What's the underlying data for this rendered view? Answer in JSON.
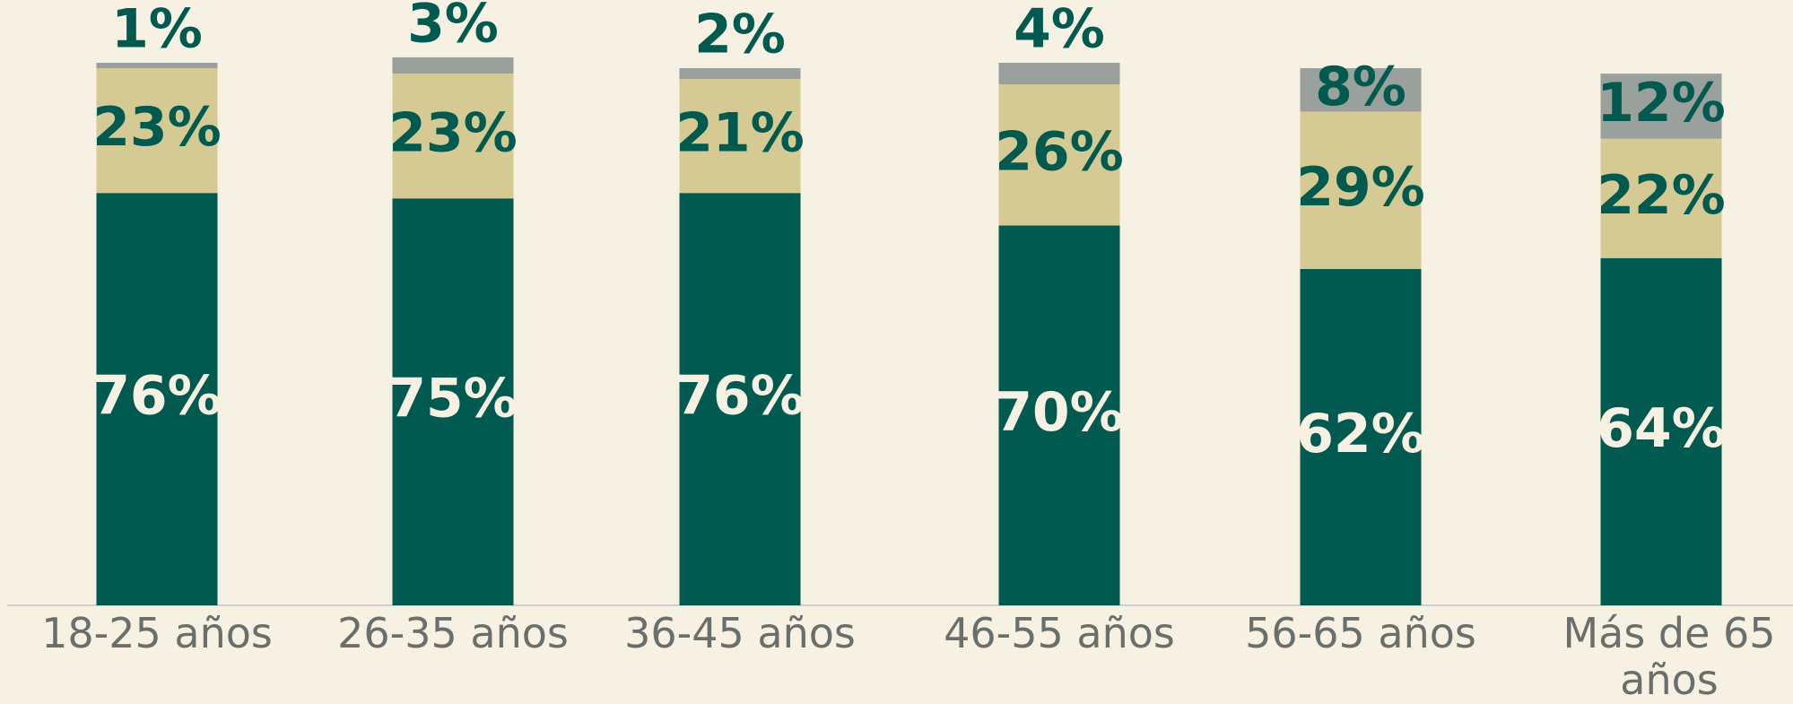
{
  "chart_data": {
    "type": "stacked_bar",
    "categories": [
      "18-25 años",
      "26-35 años",
      "36-45 años",
      "46-55 años",
      "56-65 años",
      "Más de 65 años"
    ],
    "series": [
      {
        "color": "#005a4f",
        "values": [
          76,
          75,
          76,
          70,
          62,
          64
        ],
        "value_labels": [
          "76%",
          "75%",
          "76%",
          "70%",
          "62%",
          "64%"
        ]
      },
      {
        "color": "#d6ca94",
        "values": [
          23,
          23,
          21,
          26,
          29,
          22
        ],
        "value_labels": [
          "23%",
          "23%",
          "21%",
          "26%",
          "29%",
          "22%"
        ]
      },
      {
        "color": "#9aa09c",
        "values": [
          1,
          3,
          2,
          4,
          8,
          12
        ],
        "value_labels": [
          "1%",
          "3%",
          "2%",
          "4%",
          "8%",
          "12%"
        ]
      }
    ]
  }
}
